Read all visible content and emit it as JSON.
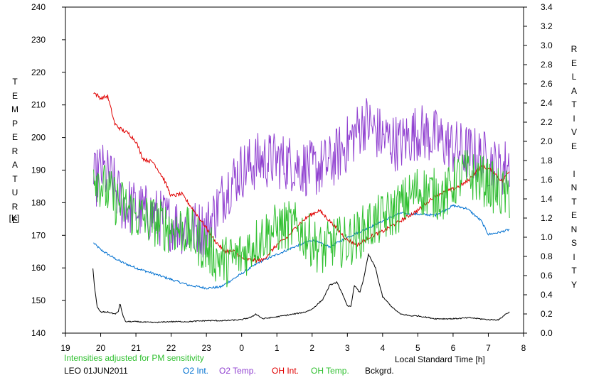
{
  "chart_data": {
    "type": "line",
    "station": "LEO 01JUN2011",
    "note": "Intensities adjusted for PM sensitivity",
    "xlabel": "Local Standard Time [h]",
    "ylabel_left": "TEMPERATURE",
    "ylabel_left_unit": "[K]",
    "ylabel_right": "RELATIVE INTENSITY",
    "x_ticks": [
      "19",
      "20",
      "21",
      "22",
      "23",
      "0",
      "1",
      "2",
      "3",
      "4",
      "5",
      "6",
      "7",
      "8"
    ],
    "xlim": [
      19,
      32
    ],
    "ylim_left": [
      140,
      240
    ],
    "ylim_right": [
      0.0,
      3.4
    ],
    "y_ticks_left": [
      140,
      150,
      160,
      170,
      180,
      190,
      200,
      210,
      220,
      230,
      240
    ],
    "y_ticks_right": [
      "0.0",
      "0.2",
      "0.4",
      "0.6",
      "0.8",
      "1.0",
      "1.2",
      "1.4",
      "1.6",
      "1.8",
      "2.0",
      "2.2",
      "2.4",
      "2.6",
      "2.8",
      "3.0",
      "3.2",
      "3.4"
    ],
    "series": [
      {
        "name": "O2 Int.",
        "axis": "right",
        "color": "#0070d0",
        "noise": 0.012,
        "x": [
          19.8,
          20.0,
          20.3,
          20.6,
          21.0,
          21.5,
          22.0,
          22.5,
          23.0,
          23.4,
          23.7,
          24.0,
          24.5,
          25.0,
          25.5,
          26.0,
          26.5,
          27.0,
          27.5,
          28.0,
          28.5,
          29.0,
          29.5,
          30.0,
          30.4,
          30.8,
          31.0,
          31.3,
          31.6
        ],
        "y": [
          0.94,
          0.87,
          0.8,
          0.74,
          0.68,
          0.62,
          0.56,
          0.5,
          0.47,
          0.48,
          0.55,
          0.62,
          0.74,
          0.82,
          0.9,
          0.97,
          0.9,
          1.0,
          1.08,
          1.17,
          1.25,
          1.24,
          1.23,
          1.33,
          1.3,
          1.17,
          1.03,
          1.05,
          1.08
        ]
      },
      {
        "name": "O2 Temp.",
        "axis": "left",
        "color": "#9040d0",
        "noise": 9,
        "x": [
          19.8,
          20.0,
          20.3,
          20.6,
          21.0,
          21.5,
          22.0,
          22.5,
          23.0,
          23.3,
          23.6,
          24.0,
          24.5,
          25.0,
          25.5,
          26.0,
          26.5,
          27.0,
          27.5,
          28.0,
          28.5,
          29.0,
          29.5,
          30.0,
          30.5,
          31.0,
          31.3,
          31.6
        ],
        "y": [
          186,
          190,
          187,
          180,
          178,
          176,
          174,
          172,
          172,
          178,
          185,
          190,
          193,
          193,
          192,
          190,
          192,
          198,
          205,
          200,
          198,
          202,
          200,
          197,
          195,
          193,
          190,
          192
        ]
      },
      {
        "name": "OH Int.",
        "axis": "right",
        "color": "#e00000",
        "noise": 0.02,
        "x": [
          19.8,
          20.0,
          20.2,
          20.4,
          20.6,
          20.8,
          21.0,
          21.2,
          21.5,
          21.8,
          22.0,
          22.3,
          22.6,
          22.9,
          23.2,
          23.5,
          23.8,
          24.0,
          24.3,
          24.6,
          24.8,
          25.0,
          25.3,
          25.6,
          25.9,
          26.2,
          26.5,
          26.8,
          27.0,
          27.3,
          27.6,
          28.0,
          28.5,
          29.0,
          29.5,
          30.0,
          30.4,
          30.8,
          31.1,
          31.4,
          31.6
        ],
        "y": [
          2.51,
          2.45,
          2.47,
          2.18,
          2.12,
          2.08,
          2.0,
          1.82,
          1.78,
          1.6,
          1.43,
          1.45,
          1.3,
          1.15,
          0.98,
          0.86,
          0.85,
          0.78,
          0.76,
          0.76,
          0.84,
          0.92,
          1.0,
          1.13,
          1.22,
          1.28,
          1.17,
          1.05,
          0.97,
          0.92,
          1.0,
          1.06,
          1.17,
          1.28,
          1.44,
          1.5,
          1.58,
          1.74,
          1.7,
          1.58,
          1.7
        ]
      },
      {
        "name": "OH Temp.",
        "axis": "left",
        "color": "#30c030",
        "noise": 8,
        "x": [
          19.8,
          20.0,
          20.2,
          20.5,
          20.8,
          21.0,
          21.3,
          21.6,
          22.0,
          22.3,
          22.6,
          23.0,
          23.3,
          23.6,
          24.0,
          24.3,
          24.6,
          25.0,
          25.3,
          25.6,
          26.0,
          26.3,
          26.6,
          27.0,
          27.3,
          27.6,
          28.0,
          28.4,
          28.8,
          29.0,
          29.4,
          29.8,
          30.0,
          30.3,
          30.6,
          31.0,
          31.3,
          31.6
        ],
        "y": [
          190,
          186,
          183,
          180,
          178,
          176,
          175,
          174,
          172,
          172,
          170,
          166,
          163,
          162,
          164,
          167,
          170,
          172,
          173,
          172,
          168,
          165,
          168,
          168,
          170,
          173,
          175,
          178,
          182,
          184,
          183,
          182,
          186,
          189,
          188,
          186,
          183,
          182
        ]
      },
      {
        "name": "Bckgrd.",
        "axis": "right",
        "color": "#000000",
        "noise": 0.006,
        "x": [
          19.78,
          19.82,
          19.9,
          20.0,
          20.2,
          20.4,
          20.5,
          20.55,
          20.6,
          20.7,
          21.0,
          21.5,
          22.0,
          22.5,
          23.0,
          23.5,
          24.0,
          24.3,
          24.4,
          24.6,
          25.0,
          25.5,
          25.8,
          26.0,
          26.3,
          26.5,
          26.7,
          26.85,
          27.0,
          27.1,
          27.2,
          27.35,
          27.45,
          27.6,
          27.7,
          27.8,
          27.9,
          28.0,
          28.3,
          28.5,
          28.8,
          29.0,
          29.5,
          30.0,
          30.5,
          31.0,
          31.3,
          31.5,
          31.6
        ],
        "y": [
          0.68,
          0.5,
          0.27,
          0.22,
          0.22,
          0.2,
          0.22,
          0.32,
          0.22,
          0.12,
          0.12,
          0.11,
          0.12,
          0.12,
          0.13,
          0.13,
          0.14,
          0.17,
          0.2,
          0.15,
          0.17,
          0.2,
          0.22,
          0.25,
          0.35,
          0.5,
          0.53,
          0.42,
          0.28,
          0.28,
          0.5,
          0.42,
          0.55,
          0.82,
          0.75,
          0.68,
          0.52,
          0.38,
          0.26,
          0.2,
          0.18,
          0.18,
          0.15,
          0.15,
          0.16,
          0.14,
          0.14,
          0.2,
          0.22
        ]
      }
    ]
  }
}
